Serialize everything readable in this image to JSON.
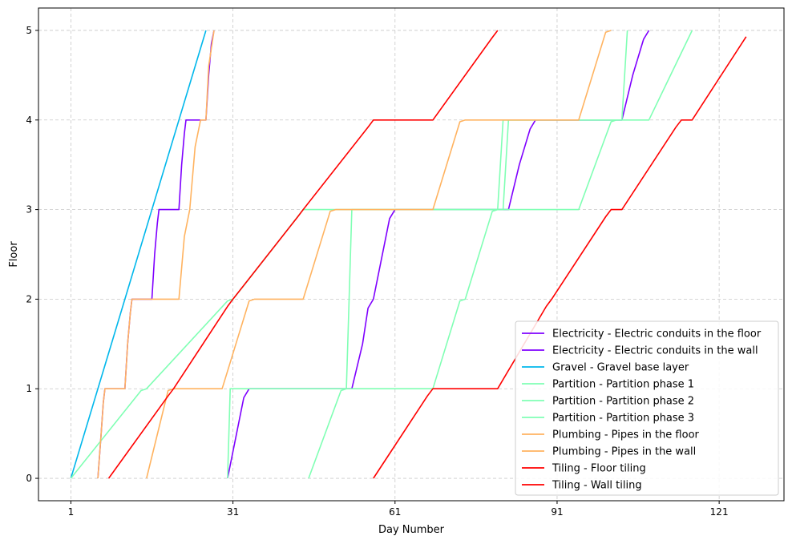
{
  "chart_data": {
    "type": "line",
    "title": "",
    "xlabel": "Day Number",
    "ylabel": "Floor",
    "xlim": [
      -5,
      133
    ],
    "ylim": [
      -0.25,
      5.25
    ],
    "xticks": [
      1,
      31,
      61,
      91,
      121
    ],
    "yticks": [
      0,
      1,
      2,
      3,
      4,
      5
    ],
    "grid": true,
    "legend_position": "lower-right",
    "series": [
      {
        "name": "Electricity - Electric conduits in the floor",
        "color": "#7f00ff",
        "points": [
          [
            6,
            0
          ],
          [
            6.6,
            0.5
          ],
          [
            7,
            0.85
          ],
          [
            7.3,
            1
          ],
          [
            11,
            1
          ],
          [
            11.5,
            1.5
          ],
          [
            12,
            1.85
          ],
          [
            12.3,
            2
          ],
          [
            16,
            2
          ],
          [
            16.5,
            2.5
          ],
          [
            17,
            2.85
          ],
          [
            17.3,
            3
          ],
          [
            21,
            3
          ],
          [
            21.5,
            3.5
          ],
          [
            22,
            3.85
          ],
          [
            22.3,
            4
          ],
          [
            26,
            4
          ],
          [
            26.5,
            4.5
          ],
          [
            27,
            4.85
          ],
          [
            27.5,
            5
          ]
        ]
      },
      {
        "name": "Electricity - Electric conduits in the wall",
        "color": "#7f00ff",
        "points": [
          [
            30,
            0
          ],
          [
            33,
            0.9
          ],
          [
            34,
            1
          ],
          [
            53,
            1
          ],
          [
            55,
            1.5
          ],
          [
            56,
            1.9
          ],
          [
            57,
            2
          ],
          [
            60,
            2.9
          ],
          [
            61,
            3
          ],
          [
            82,
            3
          ],
          [
            84,
            3.5
          ],
          [
            86,
            3.9
          ],
          [
            87,
            4
          ],
          [
            103,
            4
          ],
          [
            105,
            4.5
          ],
          [
            107,
            4.9
          ],
          [
            108,
            5
          ]
        ]
      },
      {
        "name": "Gravel - Gravel base layer",
        "color": "#00b7eb",
        "points": [
          [
            1,
            0
          ],
          [
            26,
            5
          ]
        ]
      },
      {
        "name": "Partition - Partition phase 1",
        "color": "#80ffb4",
        "points": [
          [
            1,
            0
          ],
          [
            14,
            0.98
          ],
          [
            15,
            1
          ],
          [
            30,
            1.98
          ],
          [
            31,
            2
          ],
          [
            33,
            2.15
          ],
          [
            44,
            3
          ],
          [
            80,
            3
          ],
          [
            81,
            4
          ],
          [
            103,
            4
          ],
          [
            104,
            5
          ]
        ]
      },
      {
        "name": "Partition - Partition phase 2",
        "color": "#80ffb4",
        "points": [
          [
            30,
            0
          ],
          [
            30.5,
            1
          ],
          [
            52,
            1
          ],
          [
            53,
            3
          ],
          [
            81,
            3
          ],
          [
            82,
            4
          ],
          [
            108,
            4
          ],
          [
            116,
            5
          ]
        ]
      },
      {
        "name": "Partition - Partition phase 3",
        "color": "#80ffb4",
        "points": [
          [
            45,
            0
          ],
          [
            51,
            0.98
          ],
          [
            52,
            1
          ],
          [
            68,
            1
          ],
          [
            73,
            1.98
          ],
          [
            74,
            2
          ],
          [
            79,
            2.98
          ],
          [
            80,
            3
          ],
          [
            95,
            3
          ],
          [
            101,
            3.98
          ],
          [
            102,
            4
          ],
          [
            102,
            4
          ],
          [
            101,
            4
          ]
        ]
      },
      {
        "name": "Plumbing - Pipes in the floor",
        "color": "#ffb360",
        "points": [
          [
            6,
            0
          ],
          [
            6.6,
            0.5
          ],
          [
            7,
            0.85
          ],
          [
            7.3,
            1
          ],
          [
            11,
            1
          ],
          [
            11.5,
            1.5
          ],
          [
            12,
            1.85
          ],
          [
            12.3,
            2
          ],
          [
            21,
            2
          ],
          [
            22,
            2.7
          ],
          [
            23,
            3
          ],
          [
            24,
            3.7
          ],
          [
            25,
            4
          ],
          [
            26,
            4
          ],
          [
            26.5,
            4.6
          ],
          [
            27.5,
            5
          ]
        ]
      },
      {
        "name": "Plumbing - Pipes in the wall",
        "color": "#ffb360",
        "points": [
          [
            15,
            0
          ],
          [
            19,
            0.98
          ],
          [
            20,
            1
          ],
          [
            29,
            1
          ],
          [
            34,
            1.98
          ],
          [
            35,
            2
          ],
          [
            44,
            2
          ],
          [
            49,
            2.98
          ],
          [
            50,
            3
          ],
          [
            68,
            3
          ],
          [
            73,
            3.98
          ],
          [
            74,
            4
          ],
          [
            95,
            4
          ],
          [
            100,
            4.98
          ],
          [
            101,
            5
          ]
        ]
      },
      {
        "name": "Tiling - Floor tiling",
        "color": "#ff0000",
        "points": [
          [
            8,
            0
          ],
          [
            19,
            0.92
          ],
          [
            20,
            1
          ],
          [
            30,
            1.92
          ],
          [
            31,
            2
          ],
          [
            43,
            2.92
          ],
          [
            44,
            3
          ],
          [
            56,
            3.92
          ],
          [
            57,
            4
          ],
          [
            68,
            4
          ],
          [
            79,
            4.92
          ],
          [
            80,
            5
          ]
        ]
      },
      {
        "name": "Tiling - Wall tiling",
        "color": "#ff0000",
        "points": [
          [
            57,
            0
          ],
          [
            67,
            0.92
          ],
          [
            68,
            1
          ],
          [
            80,
            1
          ],
          [
            89,
            1.92
          ],
          [
            90,
            2
          ],
          [
            100,
            2.92
          ],
          [
            101,
            3
          ],
          [
            103,
            3
          ],
          [
            113,
            3.92
          ],
          [
            114,
            4
          ],
          [
            116,
            4
          ],
          [
            126,
            4.93
          ]
        ]
      }
    ]
  }
}
